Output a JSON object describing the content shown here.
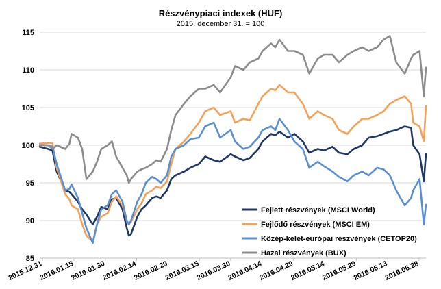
{
  "chart_data": {
    "type": "line",
    "title": "Részvénypiaci indexek (HUF)",
    "subtitle": "2015. december 31. = 100",
    "xlabel": "",
    "ylabel": "",
    "ylim": [
      85,
      115
    ],
    "yticks": [
      85,
      90,
      95,
      100,
      105,
      110,
      115
    ],
    "grid": "horizontal",
    "legend_position": "bottom-right",
    "x_tick_labels": [
      "2015.12.31",
      "2016.01.15",
      "2016.01.30",
      "2016.02.14",
      "2016.02.29",
      "2016.03.15",
      "2016.03.30",
      "2016.04.14",
      "2016.04.29",
      "2016.05.14",
      "2016.05.29",
      "2016.06.13",
      "2016.06.28"
    ],
    "series": [
      {
        "name": "Fejlett részvények (MSCI World)",
        "color": "#1f3864",
        "x": [
          "2015-12-31",
          "2016-01-04",
          "2016-01-06",
          "2016-01-08",
          "2016-01-12",
          "2016-01-14",
          "2016-01-15",
          "2016-01-18",
          "2016-01-20",
          "2016-01-22",
          "2016-01-25",
          "2016-01-27",
          "2016-01-29",
          "2016-02-01",
          "2016-02-03",
          "2016-02-05",
          "2016-02-08",
          "2016-02-10",
          "2016-02-11",
          "2016-02-12",
          "2016-02-15",
          "2016-02-17",
          "2016-02-19",
          "2016-02-22",
          "2016-02-24",
          "2016-02-26",
          "2016-02-29",
          "2016-03-02",
          "2016-03-04",
          "2016-03-08",
          "2016-03-11",
          "2016-03-15",
          "2016-03-18",
          "2016-03-22",
          "2016-03-25",
          "2016-03-30",
          "2016-04-01",
          "2016-04-05",
          "2016-04-08",
          "2016-04-12",
          "2016-04-14",
          "2016-04-18",
          "2016-04-20",
          "2016-04-22",
          "2016-04-26",
          "2016-04-29",
          "2016-05-03",
          "2016-05-06",
          "2016-05-10",
          "2016-05-13",
          "2016-05-17",
          "2016-05-20",
          "2016-05-24",
          "2016-05-27",
          "2016-05-31",
          "2016-06-03",
          "2016-06-07",
          "2016-06-10",
          "2016-06-13",
          "2016-06-16",
          "2016-06-20",
          "2016-06-23",
          "2016-06-24",
          "2016-06-27",
          "2016-06-29",
          "2016-06-30"
        ],
        "values": [
          99.8,
          99.5,
          99.3,
          96.5,
          94.0,
          93.8,
          93.5,
          92.5,
          91.5,
          90.8,
          89.5,
          90.5,
          91.8,
          91.5,
          92.8,
          93.0,
          91.5,
          89.0,
          88.0,
          88.2,
          90.5,
          91.5,
          92.0,
          93.0,
          93.2,
          93.0,
          94.0,
          95.5,
          96.0,
          96.5,
          97.0,
          97.5,
          98.5,
          98.0,
          97.8,
          98.8,
          98.5,
          98.0,
          98.3,
          99.5,
          100.5,
          101.5,
          101.3,
          101.8,
          101.0,
          101.5,
          100.5,
          99.0,
          99.5,
          99.3,
          99.8,
          99.0,
          98.8,
          99.5,
          100.0,
          101.0,
          101.2,
          101.5,
          101.8,
          102.0,
          102.5,
          102.3,
          100.0,
          98.8,
          95.2,
          98.8
        ]
      },
      {
        "name": "Fejlődő részvények (MSCI EM)",
        "color": "#f4a259",
        "x": [
          "2015-12-31",
          "2016-01-04",
          "2016-01-06",
          "2016-01-08",
          "2016-01-12",
          "2016-01-14",
          "2016-01-15",
          "2016-01-18",
          "2016-01-20",
          "2016-01-22",
          "2016-01-25",
          "2016-01-27",
          "2016-01-29",
          "2016-02-01",
          "2016-02-03",
          "2016-02-05",
          "2016-02-08",
          "2016-02-10",
          "2016-02-11",
          "2016-02-12",
          "2016-02-15",
          "2016-02-17",
          "2016-02-19",
          "2016-02-22",
          "2016-02-24",
          "2016-02-26",
          "2016-02-29",
          "2016-03-02",
          "2016-03-04",
          "2016-03-08",
          "2016-03-11",
          "2016-03-15",
          "2016-03-18",
          "2016-03-22",
          "2016-03-25",
          "2016-03-30",
          "2016-04-01",
          "2016-04-05",
          "2016-04-08",
          "2016-04-12",
          "2016-04-14",
          "2016-04-18",
          "2016-04-20",
          "2016-04-22",
          "2016-04-26",
          "2016-04-29",
          "2016-05-03",
          "2016-05-06",
          "2016-05-10",
          "2016-05-13",
          "2016-05-17",
          "2016-05-20",
          "2016-05-24",
          "2016-05-27",
          "2016-05-31",
          "2016-06-03",
          "2016-06-07",
          "2016-06-10",
          "2016-06-13",
          "2016-06-16",
          "2016-06-20",
          "2016-06-23",
          "2016-06-24",
          "2016-06-27",
          "2016-06-29",
          "2016-06-30"
        ],
        "values": [
          100.2,
          100.3,
          100.3,
          97.0,
          93.5,
          92.8,
          92.0,
          91.5,
          89.5,
          88.0,
          87.2,
          89.5,
          90.5,
          91.0,
          92.5,
          93.2,
          92.0,
          90.0,
          89.5,
          89.8,
          91.5,
          92.3,
          93.5,
          94.0,
          94.5,
          94.3,
          95.2,
          97.5,
          99.5,
          100.5,
          101.5,
          103.0,
          104.5,
          105.0,
          104.0,
          104.5,
          103.0,
          103.5,
          103.3,
          105.5,
          106.5,
          107.5,
          107.3,
          108.0,
          107.0,
          107.0,
          105.5,
          103.5,
          104.5,
          104.0,
          103.5,
          102.0,
          101.5,
          102.5,
          103.5,
          103.5,
          104.0,
          104.5,
          105.5,
          106.0,
          106.5,
          105.5,
          103.0,
          102.5,
          100.5,
          105.2
        ]
      },
      {
        "name": "Közép-kelet-európai részvények (CETOP20)",
        "color": "#5b8fd1",
        "x": [
          "2015-12-31",
          "2016-01-04",
          "2016-01-06",
          "2016-01-08",
          "2016-01-12",
          "2016-01-14",
          "2016-01-15",
          "2016-01-18",
          "2016-01-20",
          "2016-01-22",
          "2016-01-25",
          "2016-01-27",
          "2016-01-29",
          "2016-02-01",
          "2016-02-03",
          "2016-02-05",
          "2016-02-08",
          "2016-02-10",
          "2016-02-11",
          "2016-02-12",
          "2016-02-15",
          "2016-02-17",
          "2016-02-19",
          "2016-02-22",
          "2016-02-24",
          "2016-02-26",
          "2016-02-29",
          "2016-03-02",
          "2016-03-04",
          "2016-03-08",
          "2016-03-11",
          "2016-03-15",
          "2016-03-18",
          "2016-03-22",
          "2016-03-25",
          "2016-03-30",
          "2016-04-01",
          "2016-04-05",
          "2016-04-08",
          "2016-04-12",
          "2016-04-14",
          "2016-04-18",
          "2016-04-20",
          "2016-04-22",
          "2016-04-26",
          "2016-04-29",
          "2016-05-03",
          "2016-05-06",
          "2016-05-10",
          "2016-05-13",
          "2016-05-17",
          "2016-05-20",
          "2016-05-24",
          "2016-05-27",
          "2016-05-31",
          "2016-06-03",
          "2016-06-07",
          "2016-06-10",
          "2016-06-13",
          "2016-06-16",
          "2016-06-20",
          "2016-06-23",
          "2016-06-24",
          "2016-06-27",
          "2016-06-29",
          "2016-06-30"
        ],
        "values": [
          100.0,
          100.0,
          99.8,
          97.5,
          94.0,
          94.2,
          94.8,
          93.0,
          91.0,
          89.0,
          87.0,
          89.5,
          91.5,
          92.0,
          93.5,
          94.0,
          92.5,
          90.0,
          89.5,
          90.0,
          92.5,
          93.5,
          95.0,
          95.8,
          95.5,
          95.0,
          96.0,
          98.5,
          99.5,
          100.0,
          100.8,
          101.0,
          102.5,
          103.0,
          101.0,
          102.0,
          100.5,
          99.5,
          99.8,
          101.0,
          102.0,
          102.5,
          102.0,
          103.5,
          102.0,
          100.5,
          99.5,
          97.0,
          97.8,
          97.2,
          96.5,
          95.8,
          95.2,
          96.0,
          96.5,
          96.0,
          97.0,
          96.8,
          96.0,
          94.0,
          92.0,
          93.0,
          94.0,
          95.5,
          89.5,
          92.1
        ]
      },
      {
        "name": "Hazai részvények (BUX)",
        "color": "#8c8c8c",
        "x": [
          "2015-12-31",
          "2016-01-04",
          "2016-01-06",
          "2016-01-08",
          "2016-01-12",
          "2016-01-14",
          "2016-01-15",
          "2016-01-18",
          "2016-01-20",
          "2016-01-22",
          "2016-01-25",
          "2016-01-27",
          "2016-01-29",
          "2016-02-01",
          "2016-02-03",
          "2016-02-05",
          "2016-02-08",
          "2016-02-10",
          "2016-02-11",
          "2016-02-12",
          "2016-02-15",
          "2016-02-17",
          "2016-02-19",
          "2016-02-22",
          "2016-02-24",
          "2016-02-26",
          "2016-02-29",
          "2016-03-02",
          "2016-03-04",
          "2016-03-08",
          "2016-03-11",
          "2016-03-15",
          "2016-03-18",
          "2016-03-22",
          "2016-03-25",
          "2016-03-30",
          "2016-04-01",
          "2016-04-05",
          "2016-04-08",
          "2016-04-12",
          "2016-04-14",
          "2016-04-18",
          "2016-04-20",
          "2016-04-22",
          "2016-04-26",
          "2016-04-29",
          "2016-05-03",
          "2016-05-06",
          "2016-05-10",
          "2016-05-13",
          "2016-05-17",
          "2016-05-20",
          "2016-05-24",
          "2016-05-27",
          "2016-05-31",
          "2016-06-03",
          "2016-06-07",
          "2016-06-10",
          "2016-06-13",
          "2016-06-16",
          "2016-06-20",
          "2016-06-23",
          "2016-06-24",
          "2016-06-27",
          "2016-06-29",
          "2016-06-30"
        ],
        "values": [
          100.0,
          100.0,
          99.5,
          100.0,
          99.5,
          100.2,
          101.5,
          101.0,
          99.5,
          95.5,
          96.5,
          97.8,
          99.5,
          100.0,
          100.5,
          98.5,
          97.0,
          96.0,
          95.0,
          95.5,
          96.5,
          96.8,
          97.0,
          97.5,
          98.0,
          97.8,
          99.5,
          102.0,
          104.0,
          105.5,
          106.5,
          107.5,
          107.5,
          108.0,
          107.0,
          109.0,
          110.5,
          110.0,
          111.0,
          111.5,
          112.5,
          113.5,
          113.0,
          114.0,
          112.5,
          112.5,
          112.0,
          109.5,
          111.5,
          112.0,
          112.0,
          111.0,
          112.0,
          112.5,
          113.0,
          112.5,
          113.0,
          114.0,
          114.5,
          111.0,
          109.5,
          111.5,
          112.0,
          112.5,
          106.5,
          110.3
        ]
      }
    ]
  }
}
